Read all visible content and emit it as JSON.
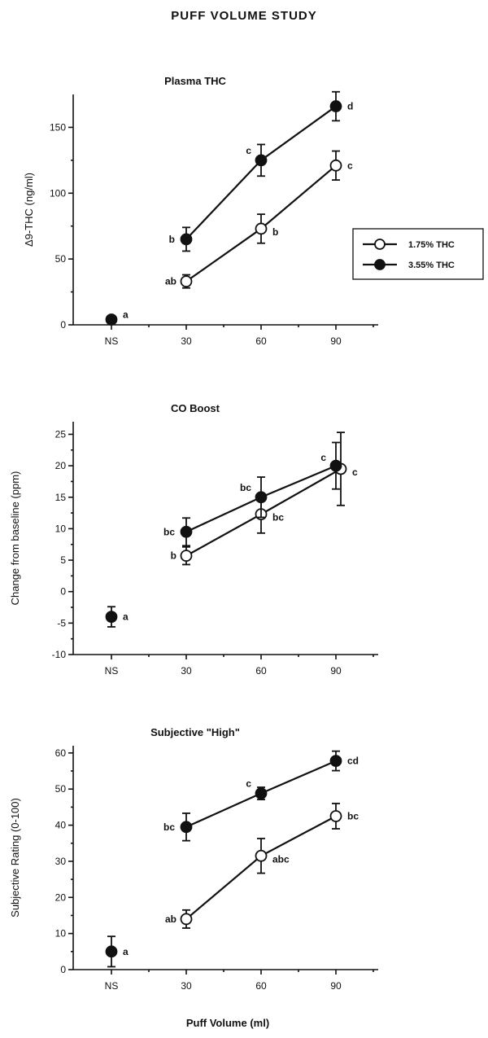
{
  "figure": {
    "title": "PUFF VOLUME STUDY",
    "xlabel": "Puff Volume (ml)"
  },
  "colors": {
    "ink": "#111111",
    "open_fill": "#ffffff",
    "filled": "#111111"
  },
  "legend": {
    "position": "right-of-top-panel",
    "entries": [
      {
        "name": "1.75% THC",
        "marker": "open-circle"
      },
      {
        "name": "3.55% THC",
        "marker": "filled-circle"
      }
    ]
  },
  "chart_data": [
    {
      "type": "line",
      "title": "Plasma THC",
      "ylabel": "Δ9-THC (ng/ml)",
      "categories": [
        "NS",
        "30",
        "60",
        "90"
      ],
      "ylim": [
        0,
        175
      ],
      "yticks": [
        0,
        50,
        100,
        150
      ],
      "ns_point": {
        "value": 4,
        "error": 0,
        "letter": "a"
      },
      "series": [
        {
          "name": "1.75% THC",
          "marker": "open",
          "x": [
            "30",
            "60",
            "90"
          ],
          "values": [
            33,
            73,
            121
          ],
          "errors": [
            5,
            11,
            11
          ],
          "letters": [
            "ab",
            "b",
            "c"
          ]
        },
        {
          "name": "3.55% THC",
          "marker": "filled",
          "x": [
            "30",
            "60",
            "90"
          ],
          "values": [
            65,
            125,
            166
          ],
          "errors": [
            9,
            12,
            11
          ],
          "letters": [
            "b",
            "c",
            "d"
          ]
        }
      ]
    },
    {
      "type": "line",
      "title": "CO Boost",
      "ylabel": "Change from baseline (ppm)",
      "categories": [
        "NS",
        "30",
        "60",
        "90"
      ],
      "ylim": [
        -10,
        27
      ],
      "yticks": [
        -10,
        -5,
        0,
        5,
        10,
        15,
        20,
        25
      ],
      "ns_point": {
        "value": -4,
        "error": 1.6,
        "letter": "a"
      },
      "series": [
        {
          "name": "1.75% THC",
          "marker": "open",
          "x": [
            "30",
            "60",
            "90"
          ],
          "values": [
            5.7,
            12.3,
            19.5
          ],
          "errors": [
            1.4,
            3,
            5.8
          ],
          "letters": [
            "b",
            "bc",
            "c"
          ]
        },
        {
          "name": "3.55% THC",
          "marker": "filled",
          "x": [
            "30",
            "60",
            "90"
          ],
          "values": [
            9.5,
            15,
            20
          ],
          "errors": [
            2.2,
            3.2,
            3.7
          ],
          "letters": [
            "bc",
            "bc",
            "c"
          ]
        }
      ]
    },
    {
      "type": "line",
      "title": "Subjective \"High\"",
      "ylabel": "Subjective Rating (0-100)",
      "categories": [
        "NS",
        "30",
        "60",
        "90"
      ],
      "ylim": [
        0,
        62
      ],
      "yticks": [
        0,
        10,
        20,
        30,
        40,
        50,
        60
      ],
      "ns_point": {
        "value": 5,
        "error": 4.2,
        "letter": "a"
      },
      "series": [
        {
          "name": "1.75% THC",
          "marker": "open",
          "x": [
            "30",
            "60",
            "90"
          ],
          "values": [
            14,
            31.5,
            42.5
          ],
          "errors": [
            2.5,
            4.8,
            3.5
          ],
          "letters": [
            "ab",
            "abc",
            "bc"
          ]
        },
        {
          "name": "3.55% THC",
          "marker": "filled",
          "x": [
            "30",
            "60",
            "90"
          ],
          "values": [
            39.5,
            48.8,
            57.8
          ],
          "errors": [
            3.8,
            1.7,
            2.7
          ],
          "letters": [
            "bc",
            "c",
            "cd"
          ]
        }
      ]
    }
  ]
}
